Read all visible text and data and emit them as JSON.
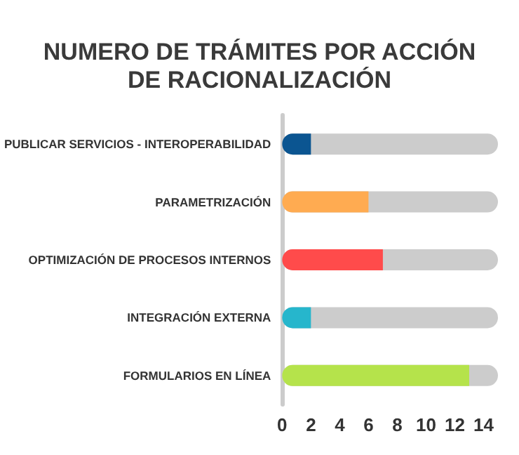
{
  "chart_data": {
    "type": "bar",
    "orientation": "horizontal",
    "title": "NUMERO DE TRÁMITES POR ACCIÓN\nDE RACIONALIZACIÓN",
    "categories": [
      "PUBLICAR SERVICIOS - INTEROPERABILIDAD",
      "PARAMETRIZACIÓN",
      "OPTIMIZACIÓN DE PROCESOS INTERNOS",
      "INTEGRACIÓN EXTERNA",
      "FORMULARIOS EN LÍNEA"
    ],
    "values": [
      2,
      6,
      7,
      2,
      13
    ],
    "colors": [
      "#0b5591",
      "#ffab51",
      "#ff4b4b",
      "#26b6cc",
      "#b5e34b"
    ],
    "xlim": [
      0,
      15
    ],
    "xticks": [
      0,
      2,
      4,
      6,
      8,
      10,
      12,
      14
    ]
  }
}
